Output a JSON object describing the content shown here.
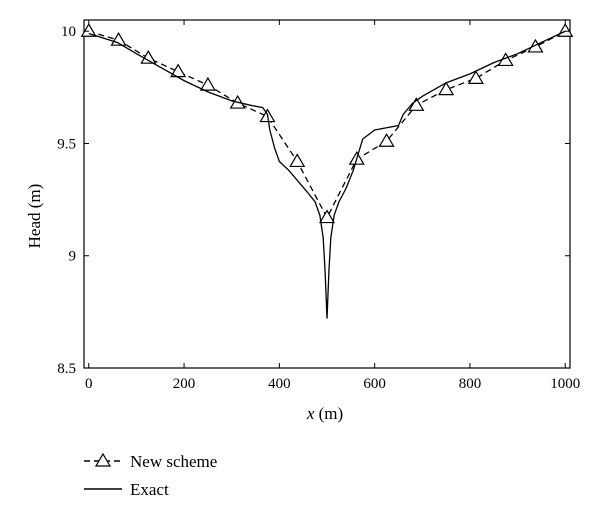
{
  "chart_data": {
    "type": "line",
    "xlabel_var": "x",
    "xlabel_unit": " (m)",
    "ylabel": "Head (m)",
    "xlim": [
      -10,
      1010
    ],
    "ylim": [
      8.5,
      10.05
    ],
    "xticks": [
      0,
      200,
      400,
      600,
      800,
      1000
    ],
    "yticks": [
      8.5,
      9,
      9.5,
      10
    ],
    "xtick_labels": [
      "0",
      "200",
      "400",
      "600",
      "800",
      "1000"
    ],
    "ytick_labels": [
      "8.5",
      "9",
      "9.5",
      "10"
    ],
    "grid": false,
    "legend_position": "bottom-left",
    "series": [
      {
        "name": "New scheme",
        "style": "dashed",
        "marker": "triangle",
        "x": [
          0,
          62.5,
          125,
          187.5,
          250,
          312.5,
          375,
          437.5,
          500,
          562.5,
          625,
          687.5,
          750,
          812.5,
          875,
          937.5,
          1000
        ],
        "y": [
          10.0,
          9.96,
          9.88,
          9.82,
          9.76,
          9.68,
          9.62,
          9.42,
          9.17,
          9.43,
          9.51,
          9.67,
          9.74,
          9.79,
          9.87,
          9.93,
          10.0
        ]
      },
      {
        "name": "Exact",
        "style": "solid",
        "marker": "none",
        "x": [
          0,
          30,
          60,
          100,
          150,
          200,
          250,
          300,
          340,
          365,
          375,
          380,
          390,
          400,
          420,
          440,
          460,
          475,
          485,
          492,
          496,
          500,
          504,
          508,
          515,
          525,
          540,
          555,
          575,
          600,
          625,
          650,
          660,
          680,
          700,
          750,
          800,
          850,
          900,
          950,
          1000
        ],
        "y": [
          9.99,
          9.97,
          9.95,
          9.9,
          9.84,
          9.78,
          9.73,
          9.69,
          9.67,
          9.66,
          9.63,
          9.56,
          9.48,
          9.42,
          9.38,
          9.33,
          9.28,
          9.24,
          9.18,
          9.08,
          8.93,
          8.72,
          8.93,
          9.08,
          9.18,
          9.24,
          9.3,
          9.38,
          9.52,
          9.56,
          9.57,
          9.58,
          9.63,
          9.68,
          9.71,
          9.77,
          9.81,
          9.86,
          9.9,
          9.95,
          10.0
        ]
      }
    ]
  }
}
